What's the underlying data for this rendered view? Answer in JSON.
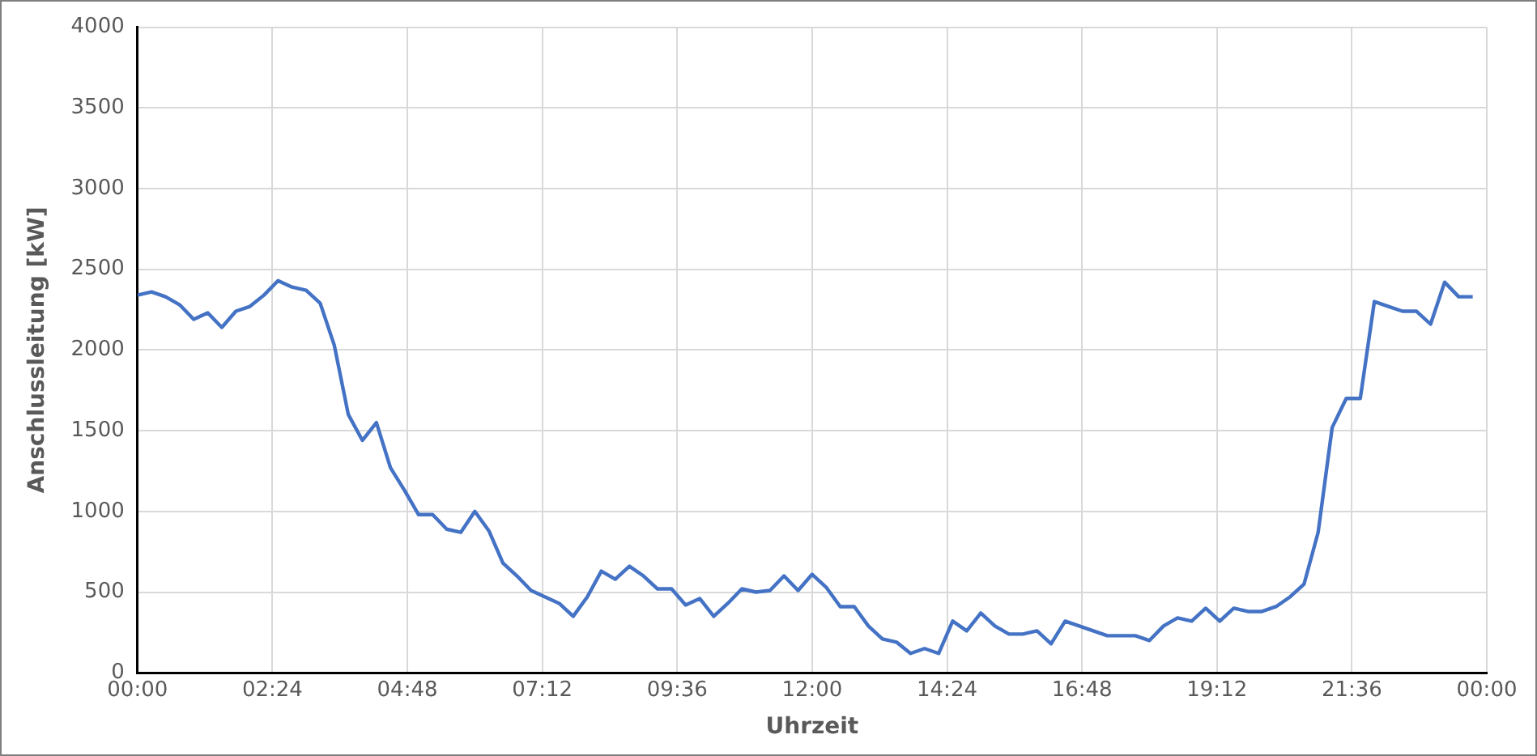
{
  "chart_data": {
    "type": "line",
    "xlabel": "Uhrzeit",
    "ylabel": "Anschlussleitung [kW]",
    "x": [
      0,
      0.25,
      0.5,
      0.75,
      1,
      1.25,
      1.5,
      1.75,
      2,
      2.25,
      2.5,
      2.75,
      3,
      3.25,
      3.5,
      3.75,
      4,
      4.25,
      4.5,
      4.75,
      5,
      5.25,
      5.5,
      5.75,
      6,
      6.25,
      6.5,
      6.75,
      7,
      7.25,
      7.5,
      7.75,
      8,
      8.25,
      8.5,
      8.75,
      9,
      9.25,
      9.5,
      9.75,
      10,
      10.25,
      10.5,
      10.75,
      11,
      11.25,
      11.5,
      11.75,
      12,
      12.25,
      12.5,
      12.75,
      13,
      13.25,
      13.5,
      13.75,
      14,
      14.25,
      14.5,
      14.75,
      15,
      15.25,
      15.5,
      15.75,
      16,
      16.25,
      16.5,
      16.75,
      17,
      17.25,
      17.5,
      17.75,
      18,
      18.25,
      18.5,
      18.75,
      19,
      19.25,
      19.5,
      19.75,
      20,
      20.25,
      20.5,
      20.75,
      21,
      21.25,
      21.5,
      21.75,
      22,
      22.25,
      22.5,
      22.75,
      23,
      23.25,
      23.5,
      23.75
    ],
    "series": [
      {
        "color": "#4472c4",
        "values": [
          2340,
          2360,
          2330,
          2280,
          2190,
          2230,
          2140,
          2240,
          2270,
          2340,
          2430,
          2390,
          2370,
          2290,
          2030,
          1600,
          1440,
          1550,
          1270,
          1130,
          980,
          980,
          890,
          870,
          1000,
          880,
          680,
          600,
          510,
          470,
          430,
          350,
          470,
          630,
          580,
          660,
          600,
          520,
          520,
          420,
          460,
          350,
          430,
          520,
          500,
          510,
          600,
          510,
          610,
          530,
          410,
          410,
          290,
          210,
          190,
          120,
          150,
          120,
          320,
          260,
          370,
          290,
          240,
          240,
          260,
          180,
          320,
          290,
          260,
          230,
          230,
          230,
          200,
          290,
          340,
          320,
          400,
          320,
          400,
          380,
          380,
          410,
          470,
          550,
          870,
          1520,
          1700,
          1700,
          2300,
          2270,
          2240,
          2240,
          2160,
          2420,
          2330,
          2330
        ]
      }
    ],
    "xlim": [
      0,
      24
    ],
    "xticks": [
      {
        "value": 0,
        "label": "00:00"
      },
      {
        "value": 2.4,
        "label": "02:24"
      },
      {
        "value": 4.8,
        "label": "04:48"
      },
      {
        "value": 7.2,
        "label": "07:12"
      },
      {
        "value": 9.6,
        "label": "09:36"
      },
      {
        "value": 12,
        "label": "12:00"
      },
      {
        "value": 14.4,
        "label": "14:24"
      },
      {
        "value": 16.8,
        "label": "16:48"
      },
      {
        "value": 19.2,
        "label": "19:12"
      },
      {
        "value": 21.6,
        "label": "21:36"
      },
      {
        "value": 24,
        "label": "00:00"
      }
    ],
    "ylim": [
      0,
      4000
    ],
    "yticks": [
      0,
      500,
      1000,
      1500,
      2000,
      2500,
      3000,
      3500,
      4000
    ],
    "grid": true,
    "legend": false,
    "marker": "none",
    "line_style": "solid"
  }
}
